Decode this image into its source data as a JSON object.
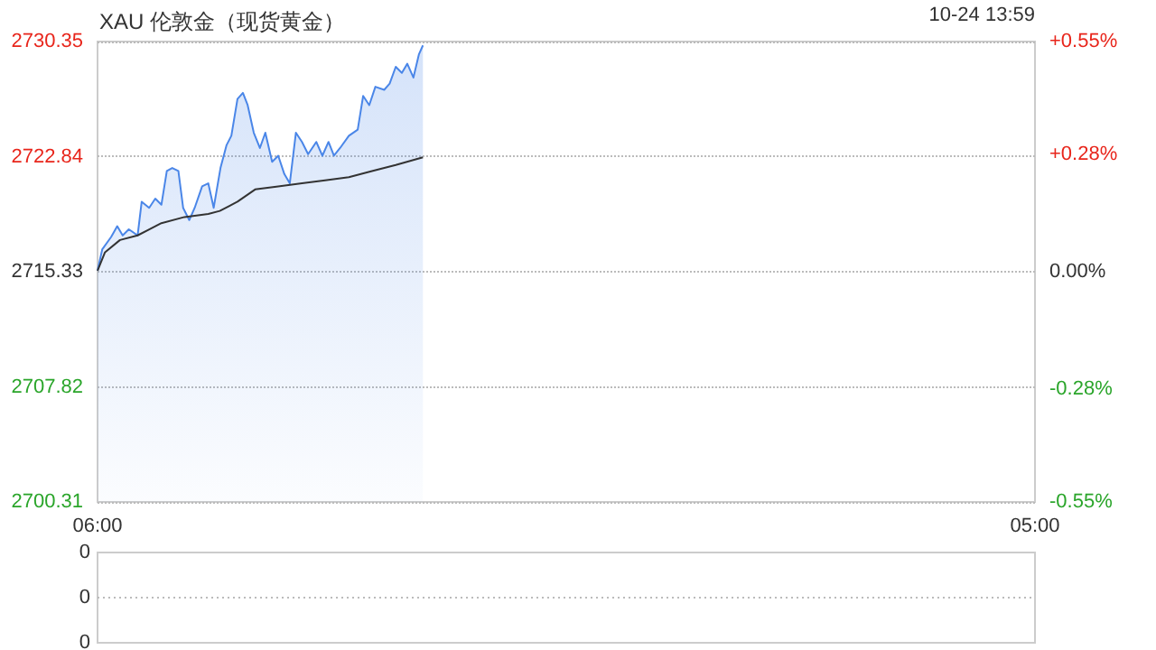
{
  "chart_data": [
    {
      "type": "line",
      "title": "XAU 伦敦金（现货黄金）",
      "annotations": [
        "10-24 13:59"
      ],
      "xlim": [
        "--10-24T06:00",
        "--10-25T05:00"
      ],
      "xticks": [
        {
          "value": "--10-24T06:00",
          "label": "06:00"
        },
        {
          "value": "--10-25T05:00",
          "label": "05:00"
        }
      ],
      "ylim": [
        2700.31,
        2730.35
      ],
      "yticks": [
        2700.31,
        2707.82,
        2715.33,
        2722.84,
        2730.35
      ],
      "y2lim": [
        -0.55,
        0.55
      ],
      "y2ticks": [
        {
          "value": -0.55,
          "label": "-0.55%"
        },
        {
          "value": -0.28,
          "label": "-0.28%"
        },
        {
          "value": 0,
          "label": "0.00%"
        },
        {
          "value": 0.28,
          "label": "+0.28%"
        },
        {
          "value": 0.55,
          "label": "+0.55%"
        }
      ],
      "grid": "y",
      "marker": "none",
      "series": [
        {
          "type": "area",
          "color": "#4a86e8",
          "x": [
            "--10-24T06:00",
            "--10-24T06:07",
            "--10-24T06:20",
            "--10-24T06:29",
            "--10-24T06:37",
            "--10-24T06:46",
            "--10-24T06:59",
            "--10-24T07:05",
            "--10-24T07:16",
            "--10-24T07:25",
            "--10-24T07:34",
            "--10-24T07:42",
            "--10-24T07:50",
            "--10-24T07:59",
            "--10-24T08:06",
            "--10-24T08:15",
            "--10-24T08:23",
            "--10-24T08:34",
            "--10-24T08:43",
            "--10-24T08:51",
            "--10-24T09:01",
            "--10-24T09:10",
            "--10-24T09:17",
            "--10-24T09:26",
            "--10-24T09:34",
            "--10-24T09:41",
            "--10-24T09:50",
            "--10-24T09:59",
            "--10-24T10:07",
            "--10-24T10:17",
            "--10-24T10:26",
            "--10-24T10:35",
            "--10-24T10:43",
            "--10-24T10:52",
            "--10-24T11:01",
            "--10-24T11:10",
            "--10-24T11:22",
            "--10-24T11:31",
            "--10-24T11:40",
            "--10-24T11:48",
            "--10-24T11:57",
            "--10-24T12:10",
            "--10-24T12:23",
            "--10-24T12:31",
            "--10-24T12:40",
            "--10-24T12:49",
            "--10-24T13:02",
            "--10-24T13:10",
            "--10-24T13:19",
            "--10-24T13:28",
            "--10-24T13:36",
            "--10-24T13:45",
            "--10-24T13:53",
            "--10-24T13:59"
          ],
          "values": [
            2715.4,
            2716.8,
            2717.6,
            2718.3,
            2717.7,
            2718.1,
            2717.7,
            2719.9,
            2719.5,
            2720.1,
            2719.7,
            2721.9,
            2722.1,
            2721.9,
            2719.5,
            2718.7,
            2719.5,
            2720.9,
            2721.1,
            2719.5,
            2722.1,
            2723.6,
            2724.2,
            2726.6,
            2727.0,
            2726.2,
            2724.4,
            2723.4,
            2724.4,
            2722.5,
            2722.9,
            2721.7,
            2721.1,
            2724.4,
            2723.8,
            2723.0,
            2723.8,
            2722.9,
            2723.8,
            2722.9,
            2723.4,
            2724.2,
            2724.6,
            2726.8,
            2726.2,
            2727.4,
            2727.2,
            2727.6,
            2728.7,
            2728.3,
            2728.9,
            2728.0,
            2729.5,
            2730.1
          ]
        },
        {
          "color": "#333333",
          "x": [
            "--10-24T06:00",
            "--10-24T06:11",
            "--10-24T06:33",
            "--10-24T06:59",
            "--10-24T07:34",
            "--10-24T08:08",
            "--10-24T08:43",
            "--10-24T09:00",
            "--10-24T09:26",
            "--10-24T09:52",
            "--10-24T10:26",
            "--10-24T11:01",
            "--10-24T11:35",
            "--10-24T12:10",
            "--10-24T12:44",
            "--10-24T13:19",
            "--10-24T13:59"
          ],
          "values": [
            2715.4,
            2716.6,
            2717.4,
            2717.7,
            2718.5,
            2718.9,
            2719.1,
            2719.3,
            2719.9,
            2720.7,
            2720.9,
            2721.1,
            2721.3,
            2721.5,
            2721.9,
            2722.3,
            2722.8
          ]
        }
      ]
    },
    {
      "type": "other",
      "annotations": [
        "0",
        "0",
        "0"
      ]
    }
  ]
}
